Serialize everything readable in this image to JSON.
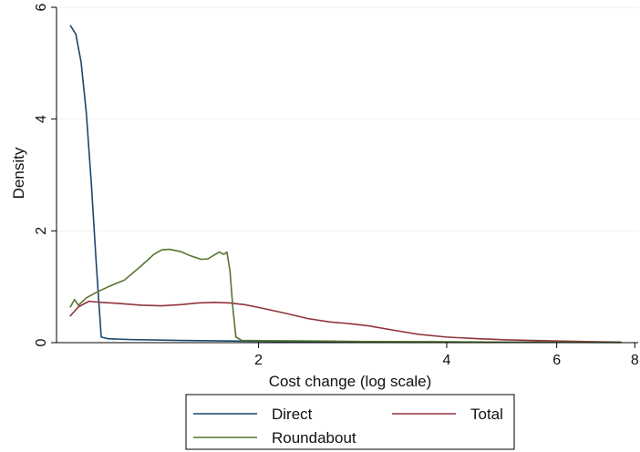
{
  "chart_data": {
    "type": "line",
    "xlabel": "Cost change (log scale)",
    "ylabel": "Density",
    "x_scale": "log",
    "xlim": [
      0.95,
      8.1
    ],
    "ylim": [
      0,
      6.0
    ],
    "x_ticks": [
      {
        "value": 2,
        "label": "2"
      },
      {
        "value": 4,
        "label": "4"
      },
      {
        "value": 6,
        "label": "6"
      },
      {
        "value": 8,
        "label": "8"
      }
    ],
    "y_ticks": [
      {
        "value": 0,
        "label": "0"
      },
      {
        "value": 2,
        "label": "2"
      },
      {
        "value": 4,
        "label": "4"
      },
      {
        "value": 6,
        "label": "6"
      }
    ],
    "grid": true,
    "legend_position": "bottom",
    "series": [
      {
        "name": "Direct",
        "color": "#1a476f",
        "points": [
          [
            1.0,
            5.67
          ],
          [
            1.02,
            5.52
          ],
          [
            1.04,
            5.02
          ],
          [
            1.06,
            4.12
          ],
          [
            1.08,
            2.85
          ],
          [
            1.1,
            1.4
          ],
          [
            1.12,
            0.1
          ],
          [
            1.15,
            0.07
          ],
          [
            1.25,
            0.055
          ],
          [
            1.5,
            0.04
          ],
          [
            1.8,
            0.03
          ],
          [
            2.2,
            0.02
          ],
          [
            3.0,
            0.015
          ],
          [
            4.5,
            0.01
          ],
          [
            6.5,
            0.005
          ],
          [
            7.6,
            0.002
          ]
        ]
      },
      {
        "name": "Total",
        "color": "#90353b",
        "points": [
          [
            1.0,
            0.48
          ],
          [
            1.03,
            0.64
          ],
          [
            1.07,
            0.74
          ],
          [
            1.12,
            0.72
          ],
          [
            1.2,
            0.7
          ],
          [
            1.3,
            0.67
          ],
          [
            1.4,
            0.66
          ],
          [
            1.5,
            0.68
          ],
          [
            1.6,
            0.71
          ],
          [
            1.7,
            0.72
          ],
          [
            1.8,
            0.71
          ],
          [
            1.9,
            0.68
          ],
          [
            2.0,
            0.63
          ],
          [
            2.2,
            0.53
          ],
          [
            2.4,
            0.43
          ],
          [
            2.6,
            0.37
          ],
          [
            2.8,
            0.34
          ],
          [
            3.0,
            0.3
          ],
          [
            3.3,
            0.22
          ],
          [
            3.6,
            0.15
          ],
          [
            4.0,
            0.1
          ],
          [
            4.5,
            0.07
          ],
          [
            5.0,
            0.05
          ],
          [
            6.0,
            0.03
          ],
          [
            7.0,
            0.015
          ],
          [
            7.6,
            0.01
          ]
        ]
      },
      {
        "name": "Roundabout",
        "color": "#55752f",
        "points": [
          [
            1.0,
            0.64
          ],
          [
            1.015,
            0.77
          ],
          [
            1.03,
            0.67
          ],
          [
            1.06,
            0.8
          ],
          [
            1.1,
            0.9
          ],
          [
            1.15,
            1.0
          ],
          [
            1.22,
            1.12
          ],
          [
            1.3,
            1.38
          ],
          [
            1.36,
            1.58
          ],
          [
            1.4,
            1.66
          ],
          [
            1.44,
            1.67
          ],
          [
            1.5,
            1.63
          ],
          [
            1.56,
            1.55
          ],
          [
            1.62,
            1.49
          ],
          [
            1.66,
            1.5
          ],
          [
            1.7,
            1.57
          ],
          [
            1.73,
            1.62
          ],
          [
            1.76,
            1.58
          ],
          [
            1.78,
            1.62
          ],
          [
            1.8,
            1.28
          ],
          [
            1.82,
            0.6
          ],
          [
            1.84,
            0.1
          ],
          [
            1.88,
            0.04
          ],
          [
            2.0,
            0.035
          ],
          [
            2.5,
            0.03
          ],
          [
            3.0,
            0.02
          ],
          [
            4.0,
            0.015
          ],
          [
            5.0,
            0.01
          ],
          [
            6.0,
            0.008
          ],
          [
            7.6,
            0.005
          ]
        ]
      }
    ]
  }
}
